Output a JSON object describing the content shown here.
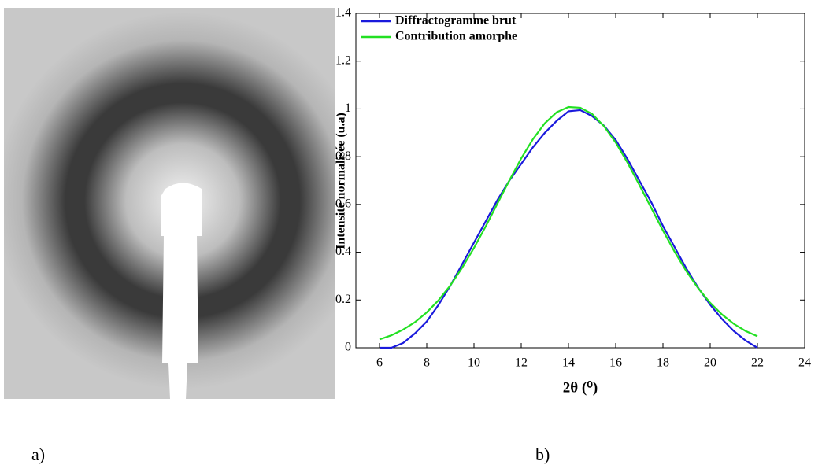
{
  "panel_labels": [
    "a)",
    "b)"
  ],
  "chart_data": {
    "type": "line",
    "xlabel": "2θ (⁰)",
    "ylabel": "Intensité normalisée (u.a)",
    "x": [
      6,
      6.5,
      7,
      7.5,
      8,
      8.5,
      9,
      9.5,
      10,
      10.5,
      11,
      11.5,
      12,
      12.5,
      13,
      13.5,
      14,
      14.5,
      15,
      15.5,
      16,
      16.5,
      17,
      17.5,
      18,
      18.5,
      19,
      19.5,
      20,
      20.5,
      21,
      21.5,
      22
    ],
    "series": [
      {
        "name": "Diffractogramme brut",
        "color": "#1a1adc",
        "values": [
          0,
          0,
          0.02,
          0.06,
          0.11,
          0.18,
          0.26,
          0.35,
          0.44,
          0.53,
          0.62,
          0.7,
          0.77,
          0.84,
          0.9,
          0.95,
          0.99,
          0.995,
          0.97,
          0.93,
          0.87,
          0.79,
          0.7,
          0.61,
          0.51,
          0.42,
          0.33,
          0.25,
          0.18,
          0.12,
          0.07,
          0.03,
          0
        ]
      },
      {
        "name": "Contribution amorphe",
        "color": "#22e022",
        "values": [
          0.035,
          0.052,
          0.076,
          0.107,
          0.148,
          0.199,
          0.261,
          0.335,
          0.418,
          0.509,
          0.605,
          0.701,
          0.793,
          0.874,
          0.94,
          0.986,
          1.008,
          1.005,
          0.979,
          0.928,
          0.859,
          0.775,
          0.682,
          0.586,
          0.491,
          0.401,
          0.319,
          0.248,
          0.188,
          0.139,
          0.1,
          0.07,
          0.048
        ]
      }
    ],
    "xlim": [
      5,
      24
    ],
    "xticks": [
      6,
      8,
      10,
      12,
      14,
      16,
      18,
      20,
      22,
      24
    ],
    "ylim": [
      0,
      1.4
    ],
    "yticks": [
      0,
      0.2,
      0.4,
      0.6,
      0.8,
      1,
      1.2,
      1.4
    ],
    "grid": false,
    "legend": "upper-left"
  }
}
